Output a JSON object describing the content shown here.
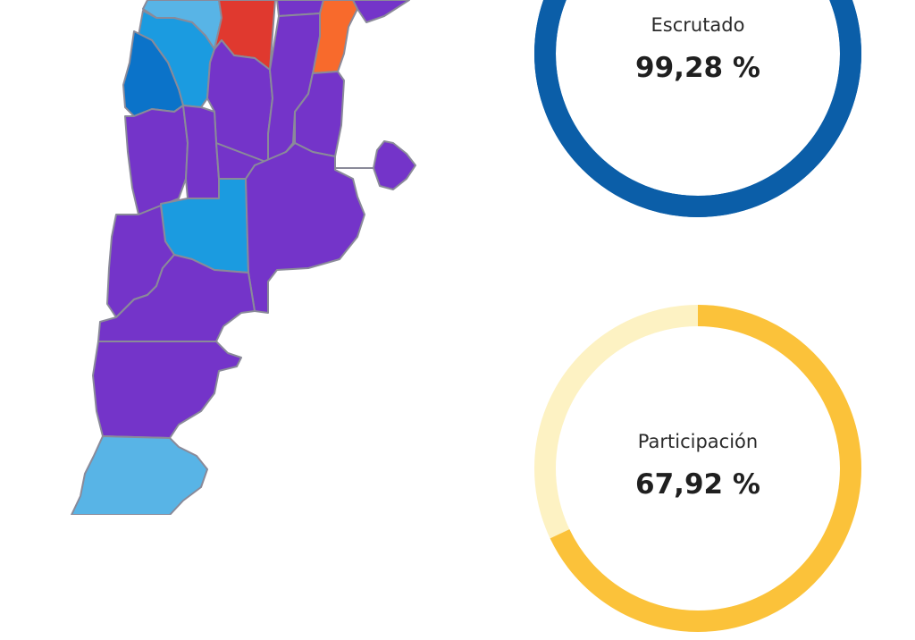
{
  "map": {
    "colors": {
      "purple": "#7434c9",
      "red": "#e0392f",
      "orange": "#f86a2c",
      "light_blue": "#58b4e6",
      "blue": "#1b9be0",
      "dark_blue": "#0b73c9",
      "border": "#8a8a99"
    }
  },
  "escrutado": {
    "label": "Escrutado",
    "value": "99,28 %",
    "percent": 99.28,
    "color": "#0b5ea8",
    "track_color": "#0b5ea8"
  },
  "participacion": {
    "label": "Participación",
    "value": "67,92 %",
    "percent": 67.92,
    "color": "#fbc23a",
    "track_color": "#fdf2c3"
  }
}
